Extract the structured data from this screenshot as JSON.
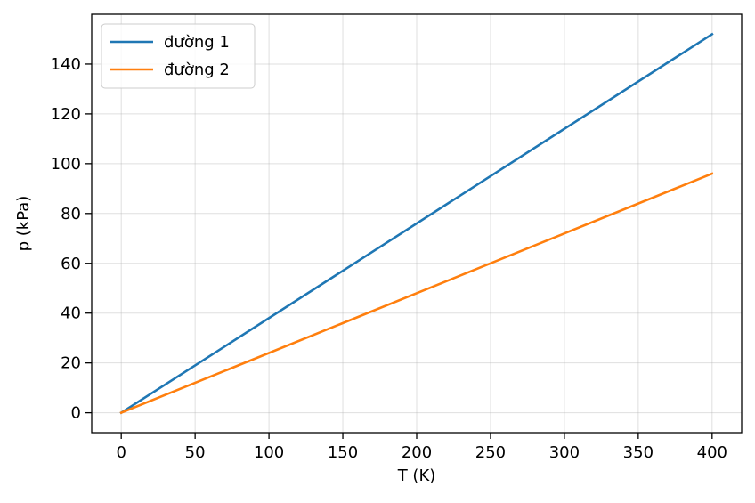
{
  "chart_data": {
    "type": "line",
    "title": "",
    "xlabel": "T (K)",
    "ylabel": "p (kPa)",
    "xlim": [
      -20,
      420
    ],
    "ylim": [
      -8,
      160
    ],
    "xticks": [
      0,
      50,
      100,
      150,
      200,
      250,
      300,
      350,
      400
    ],
    "yticks": [
      0,
      20,
      40,
      60,
      80,
      100,
      120,
      140
    ],
    "grid": true,
    "legend_position": "top-left",
    "series": [
      {
        "name": "đường 1",
        "color": "#1f77b4",
        "x": [
          0,
          400
        ],
        "y": [
          0,
          152
        ]
      },
      {
        "name": "đường 2",
        "color": "#ff7f0e",
        "x": [
          0,
          400
        ],
        "y": [
          0,
          96
        ]
      }
    ]
  }
}
